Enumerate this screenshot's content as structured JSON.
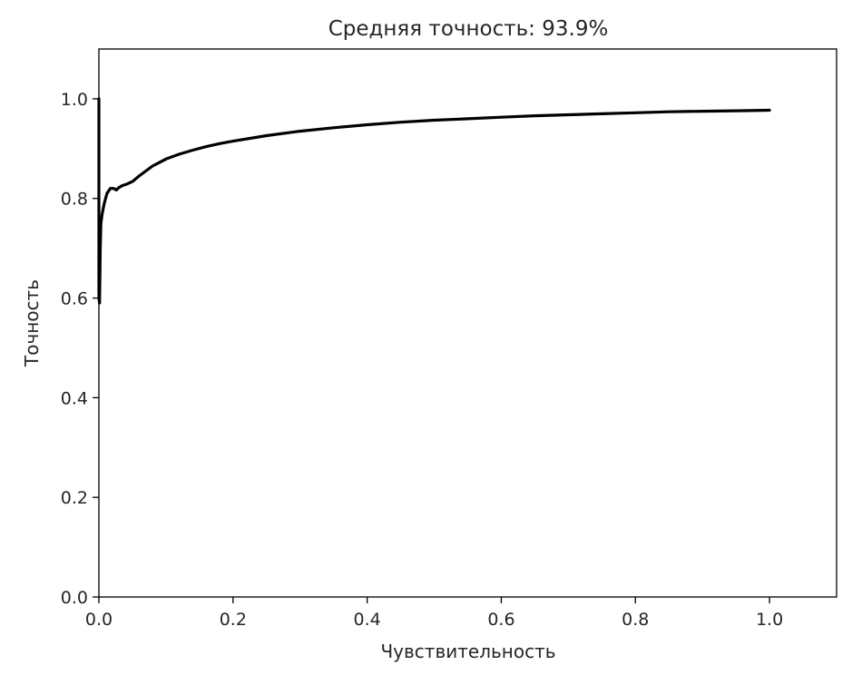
{
  "chart_data": {
    "type": "line",
    "title": "Средняя точность: 93.9%",
    "xlabel": "Чувствительность",
    "ylabel": "Точность",
    "xlim": [
      0.0,
      1.1
    ],
    "ylim": [
      0.0,
      1.1
    ],
    "grid": false,
    "x_ticks": [
      0.0,
      0.2,
      0.4,
      0.6,
      0.8,
      1.0
    ],
    "y_ticks": [
      0.0,
      0.2,
      0.4,
      0.6,
      0.8,
      1.0
    ],
    "x_tick_labels": [
      "0.0",
      "0.2",
      "0.4",
      "0.6",
      "0.8",
      "1.0"
    ],
    "y_tick_labels": [
      "0.0",
      "0.2",
      "0.4",
      "0.6",
      "0.8",
      "1.0"
    ],
    "series": [
      {
        "color": "#000000",
        "x": [
          0.0,
          0.0,
          0.001,
          0.002,
          0.003,
          0.005,
          0.008,
          0.012,
          0.017,
          0.022,
          0.026,
          0.03,
          0.035,
          0.04,
          0.05,
          0.06,
          0.07,
          0.08,
          0.09,
          0.1,
          0.12,
          0.14,
          0.16,
          0.18,
          0.2,
          0.25,
          0.3,
          0.35,
          0.4,
          0.45,
          0.5,
          0.55,
          0.6,
          0.65,
          0.7,
          0.75,
          0.8,
          0.85,
          0.9,
          0.95,
          1.0
        ],
        "y": [
          1.0,
          0.6,
          0.59,
          0.7,
          0.75,
          0.77,
          0.79,
          0.81,
          0.82,
          0.82,
          0.817,
          0.822,
          0.826,
          0.828,
          0.834,
          0.845,
          0.855,
          0.865,
          0.872,
          0.879,
          0.889,
          0.897,
          0.904,
          0.91,
          0.915,
          0.926,
          0.935,
          0.942,
          0.948,
          0.953,
          0.957,
          0.96,
          0.963,
          0.966,
          0.968,
          0.97,
          0.972,
          0.974,
          0.975,
          0.976,
          0.977
        ]
      }
    ]
  }
}
